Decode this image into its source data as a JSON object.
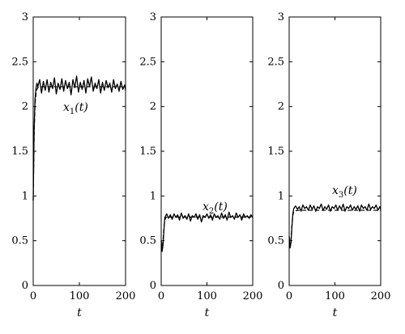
{
  "chart_data": [
    {
      "type": "line",
      "xlabel": "t",
      "ylabel": "",
      "xlim": [
        0,
        200
      ],
      "ylim": [
        0,
        3
      ],
      "xticks": [
        "0",
        "100",
        "200"
      ],
      "yticks": [
        "0",
        "0.5",
        "1",
        "1.5",
        "2",
        "2.5",
        "3"
      ],
      "grid": false,
      "annotation": {
        "base": "x",
        "sub": "1",
        "suffix": "(t)"
      },
      "series": [
        {
          "style": "solid",
          "x": [
            0,
            2,
            4,
            6,
            8,
            10,
            14,
            18,
            22,
            26,
            30,
            34,
            38,
            42,
            46,
            50,
            54,
            58,
            62,
            66,
            70,
            74,
            78,
            82,
            86,
            90,
            94,
            98,
            102,
            106,
            110,
            114,
            118,
            122,
            126,
            130,
            134,
            138,
            142,
            146,
            150,
            154,
            158,
            162,
            166,
            170,
            174,
            178,
            182,
            186,
            190,
            194,
            198,
            200
          ],
          "values": [
            0.95,
            1.75,
            2.08,
            2.2,
            2.26,
            2.22,
            2.3,
            2.15,
            2.28,
            2.18,
            2.3,
            2.16,
            2.27,
            2.2,
            2.32,
            2.14,
            2.26,
            2.19,
            2.31,
            2.17,
            2.29,
            2.2,
            2.27,
            2.13,
            2.3,
            2.21,
            2.34,
            2.16,
            2.27,
            2.19,
            2.29,
            2.15,
            2.31,
            2.22,
            2.33,
            2.17,
            2.26,
            2.2,
            2.3,
            2.15,
            2.27,
            2.18,
            2.29,
            2.21,
            2.26,
            2.16,
            2.3,
            2.2,
            2.25,
            2.17,
            2.28,
            2.19,
            2.24,
            2.18
          ]
        },
        {
          "style": "dashed",
          "x": [
            0,
            2,
            4,
            6,
            8,
            10,
            20,
            200
          ],
          "values": [
            0.95,
            1.7,
            2.02,
            2.14,
            2.19,
            2.21,
            2.22,
            2.22
          ]
        }
      ]
    },
    {
      "type": "line",
      "xlabel": "t",
      "ylabel": "",
      "xlim": [
        0,
        200
      ],
      "ylim": [
        0,
        3
      ],
      "xticks": [
        "0",
        "100",
        "200"
      ],
      "yticks": [
        "0",
        "0.5",
        "1",
        "1.5",
        "2",
        "2.5",
        "3"
      ],
      "grid": false,
      "annotation": {
        "base": "x",
        "sub": "2",
        "suffix": "(t)"
      },
      "series": [
        {
          "style": "solid",
          "x": [
            0,
            2,
            4,
            6,
            8,
            12,
            16,
            20,
            24,
            28,
            32,
            36,
            40,
            44,
            48,
            52,
            56,
            60,
            64,
            68,
            72,
            76,
            80,
            84,
            88,
            92,
            96,
            100,
            104,
            108,
            112,
            116,
            120,
            124,
            128,
            132,
            136,
            140,
            144,
            148,
            152,
            156,
            160,
            164,
            168,
            172,
            176,
            180,
            184,
            188,
            192,
            196,
            200
          ],
          "values": [
            0.5,
            0.38,
            0.45,
            0.62,
            0.76,
            0.8,
            0.75,
            0.79,
            0.74,
            0.8,
            0.76,
            0.79,
            0.73,
            0.81,
            0.75,
            0.78,
            0.74,
            0.8,
            0.72,
            0.78,
            0.76,
            0.8,
            0.74,
            0.79,
            0.71,
            0.78,
            0.76,
            0.8,
            0.75,
            0.79,
            0.73,
            0.8,
            0.76,
            0.78,
            0.74,
            0.81,
            0.75,
            0.79,
            0.73,
            0.82,
            0.76,
            0.78,
            0.74,
            0.81,
            0.76,
            0.79,
            0.73,
            0.8,
            0.76,
            0.78,
            0.75,
            0.79,
            0.76
          ]
        },
        {
          "style": "dashed",
          "x": [
            0,
            2,
            4,
            6,
            8,
            10,
            20,
            200
          ],
          "values": [
            0.5,
            0.4,
            0.5,
            0.65,
            0.73,
            0.76,
            0.765,
            0.765
          ]
        }
      ]
    },
    {
      "type": "line",
      "xlabel": "t",
      "ylabel": "",
      "xlim": [
        0,
        200
      ],
      "ylim": [
        0,
        3
      ],
      "xticks": [
        "0",
        "100",
        "200"
      ],
      "yticks": [
        "0",
        "0.5",
        "1",
        "1.5",
        "2",
        "2.5",
        "3"
      ],
      "grid": false,
      "annotation": {
        "base": "x",
        "sub": "3",
        "suffix": "(t)"
      },
      "series": [
        {
          "style": "solid",
          "x": [
            0,
            2,
            4,
            6,
            8,
            10,
            14,
            18,
            22,
            26,
            30,
            34,
            38,
            42,
            46,
            50,
            54,
            58,
            62,
            66,
            70,
            74,
            78,
            82,
            86,
            90,
            94,
            98,
            102,
            106,
            110,
            114,
            118,
            122,
            126,
            130,
            134,
            138,
            142,
            146,
            150,
            154,
            158,
            162,
            166,
            170,
            174,
            178,
            182,
            186,
            190,
            194,
            198,
            200
          ],
          "values": [
            0.55,
            0.42,
            0.48,
            0.65,
            0.8,
            0.86,
            0.89,
            0.85,
            0.88,
            0.83,
            0.9,
            0.86,
            0.88,
            0.84,
            0.9,
            0.85,
            0.89,
            0.83,
            0.88,
            0.86,
            0.91,
            0.84,
            0.88,
            0.85,
            0.9,
            0.83,
            0.88,
            0.86,
            0.9,
            0.84,
            0.89,
            0.85,
            0.91,
            0.83,
            0.88,
            0.86,
            0.9,
            0.84,
            0.88,
            0.85,
            0.89,
            0.83,
            0.9,
            0.86,
            0.88,
            0.84,
            0.91,
            0.85,
            0.88,
            0.86,
            0.9,
            0.84,
            0.88,
            0.85
          ]
        },
        {
          "style": "dashed",
          "x": [
            0,
            2,
            4,
            6,
            8,
            10,
            20,
            200
          ],
          "values": [
            0.55,
            0.45,
            0.52,
            0.68,
            0.78,
            0.83,
            0.84,
            0.84
          ]
        }
      ]
    }
  ]
}
